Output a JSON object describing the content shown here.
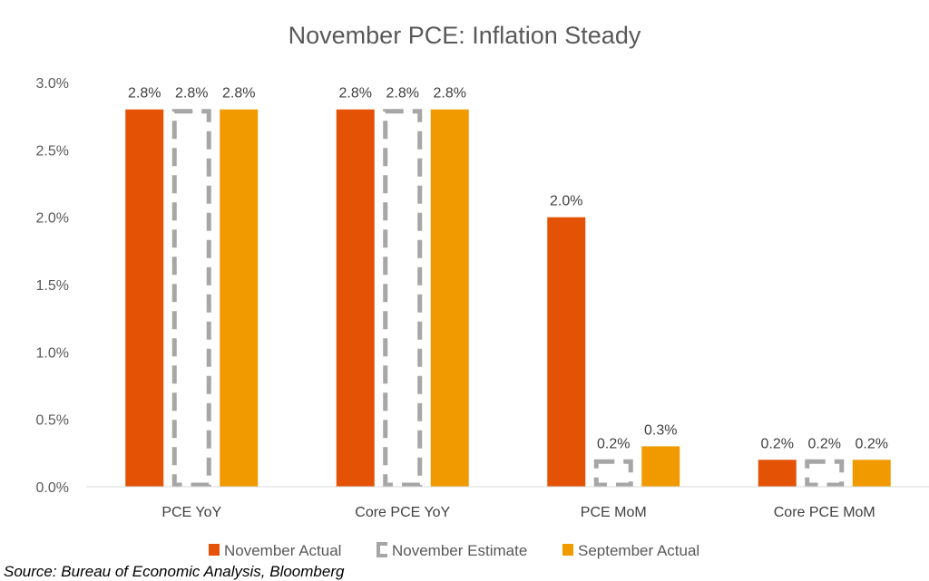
{
  "chart_data": {
    "type": "bar",
    "title": "November PCE: Inflation Steady",
    "categories": [
      "PCE YoY",
      "Core PCE YoY",
      "PCE MoM",
      "Core PCE MoM"
    ],
    "series": [
      {
        "name": "November Actual",
        "values": [
          2.8,
          2.8,
          2.0,
          0.2
        ],
        "labels": [
          "2.8%",
          "2.8%",
          "2.0%",
          "0.2%"
        ],
        "color": "#E35205",
        "style": "solid"
      },
      {
        "name": "November Estimate",
        "values": [
          2.8,
          2.8,
          0.2,
          0.2
        ],
        "labels": [
          "2.8%",
          "2.8%",
          "0.2%",
          "0.2%"
        ],
        "color": "#A6A6A6",
        "style": "dashed-outline"
      },
      {
        "name": "September Actual",
        "values": [
          2.8,
          2.8,
          0.3,
          0.2
        ],
        "labels": [
          "2.8%",
          "2.8%",
          "0.3%",
          "0.2%"
        ],
        "color": "#F09A00",
        "style": "solid"
      }
    ],
    "ylim": [
      0,
      3.0
    ],
    "yticks": [
      0,
      0.5,
      1.0,
      1.5,
      2.0,
      2.5,
      3.0
    ],
    "ytick_labels": [
      "0.0%",
      "0.5%",
      "1.0%",
      "1.5%",
      "2.0%",
      "2.5%",
      "3.0%"
    ],
    "xlabel": "",
    "ylabel": "",
    "grid": false,
    "legend_position": "bottom"
  },
  "source": "Source: Bureau of Economic Analysis, Bloomberg"
}
